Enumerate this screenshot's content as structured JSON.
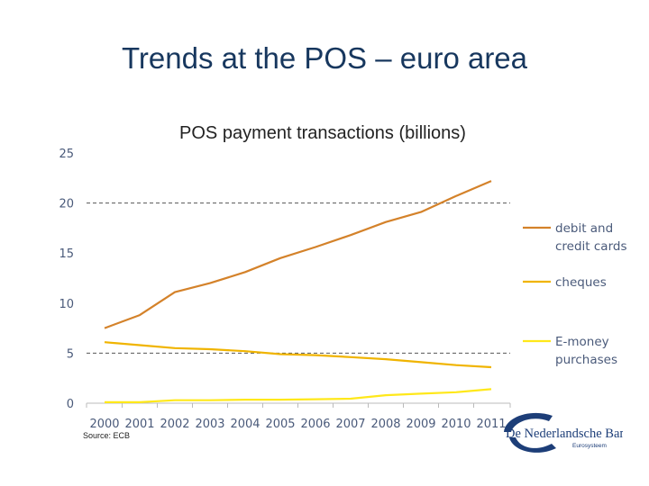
{
  "slide": {
    "title": "Trends at the POS – euro area"
  },
  "source": "Source: ECB",
  "logo": {
    "name": "De Nederlandsche Bank",
    "subtitle": "Eurosysteem"
  },
  "chart_data": {
    "type": "line",
    "title": "POS payment transactions (billions)",
    "xlabel": "",
    "ylabel": "",
    "categories": [
      "2000",
      "2001",
      "2002",
      "2003",
      "2004",
      "2005",
      "2006",
      "2007",
      "2008",
      "2009",
      "2010",
      "2011"
    ],
    "ylim": [
      0,
      25
    ],
    "yticks": [
      0,
      5,
      10,
      15,
      20,
      25
    ],
    "grid": "dashed lines at 5 and 20",
    "legend_position": "right",
    "series": [
      {
        "name": "debit and credit cards",
        "legend_lines": [
          "debit and",
          "credit cards"
        ],
        "color": "#d4822a",
        "values": [
          7.5,
          8.8,
          11.1,
          12.0,
          13.1,
          14.5,
          15.6,
          16.8,
          18.1,
          19.1,
          20.7,
          22.2
        ]
      },
      {
        "name": "cheques",
        "legend_lines": [
          "cheques"
        ],
        "color": "#f0b400",
        "values": [
          6.1,
          5.8,
          5.5,
          5.4,
          5.2,
          4.9,
          4.8,
          4.6,
          4.4,
          4.1,
          3.8,
          3.6
        ]
      },
      {
        "name": "E-money purchases",
        "legend_lines": [
          "E-money",
          "purchases"
        ],
        "color": "#ffe81a",
        "values": [
          0.1,
          0.1,
          0.3,
          0.3,
          0.35,
          0.35,
          0.4,
          0.45,
          0.8,
          0.95,
          1.1,
          1.4
        ]
      }
    ]
  }
}
